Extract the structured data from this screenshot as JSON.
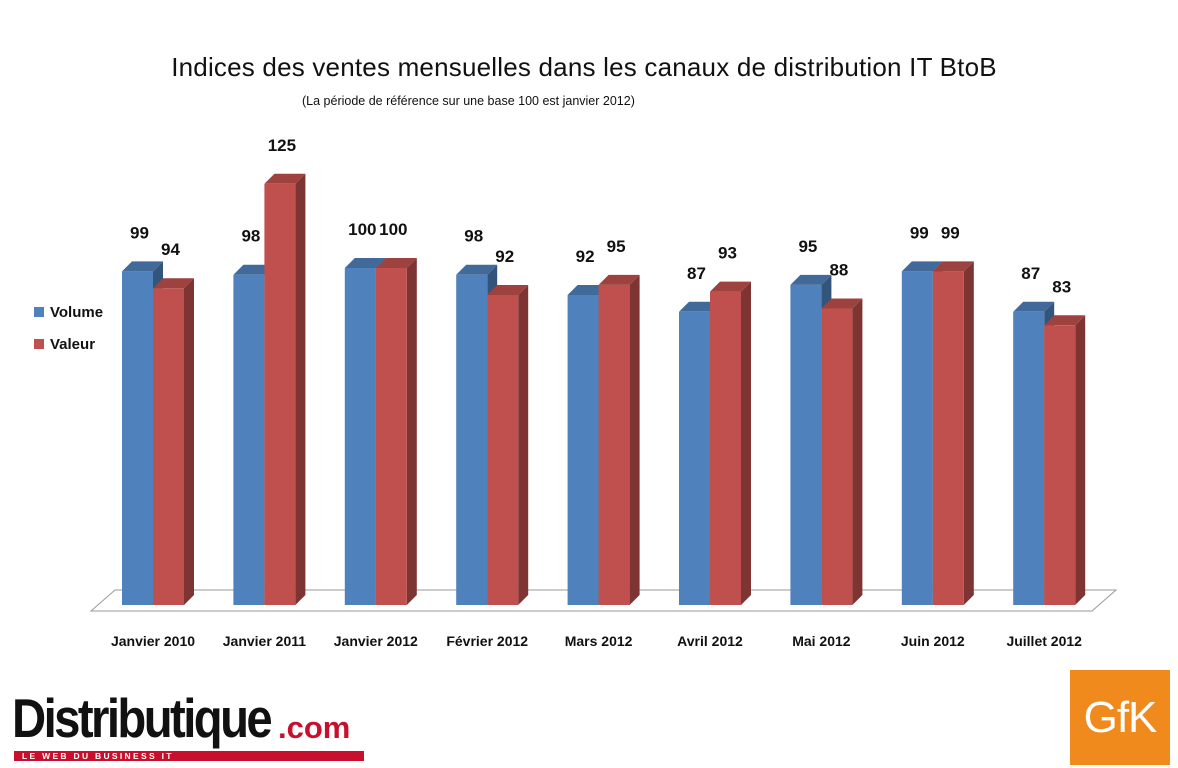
{
  "chart_data": {
    "type": "bar",
    "title": "Indices des ventes mensuelles dans les canaux de distribution IT BtoB",
    "subtitle": "(La période de référence sur une base 100 est janvier 2012)",
    "categories": [
      "Janvier 2010",
      "Janvier 2011",
      "Janvier 2012",
      "Février 2012",
      "Mars 2012",
      "Avril 2012",
      "Mai 2012",
      "Juin 2012",
      "Juillet 2012"
    ],
    "series": [
      {
        "name": "Volume",
        "color": "#4f81bd",
        "values": [
          99,
          98,
          100,
          98,
          92,
          87,
          95,
          99,
          87
        ]
      },
      {
        "name": "Valeur",
        "color": "#c0504d",
        "values": [
          94,
          125,
          100,
          92,
          95,
          93,
          88,
          99,
          83
        ]
      }
    ],
    "style": "3d-clustered-bar",
    "grid": false,
    "legend": "left",
    "data_labels": true,
    "ylim": [
      0,
      125
    ]
  },
  "branding": {
    "publisher_name": "Distributique",
    "publisher_suffix": ".com",
    "publisher_tagline": "LE WEB DU BUSINESS IT",
    "source_logo": "GfK"
  }
}
